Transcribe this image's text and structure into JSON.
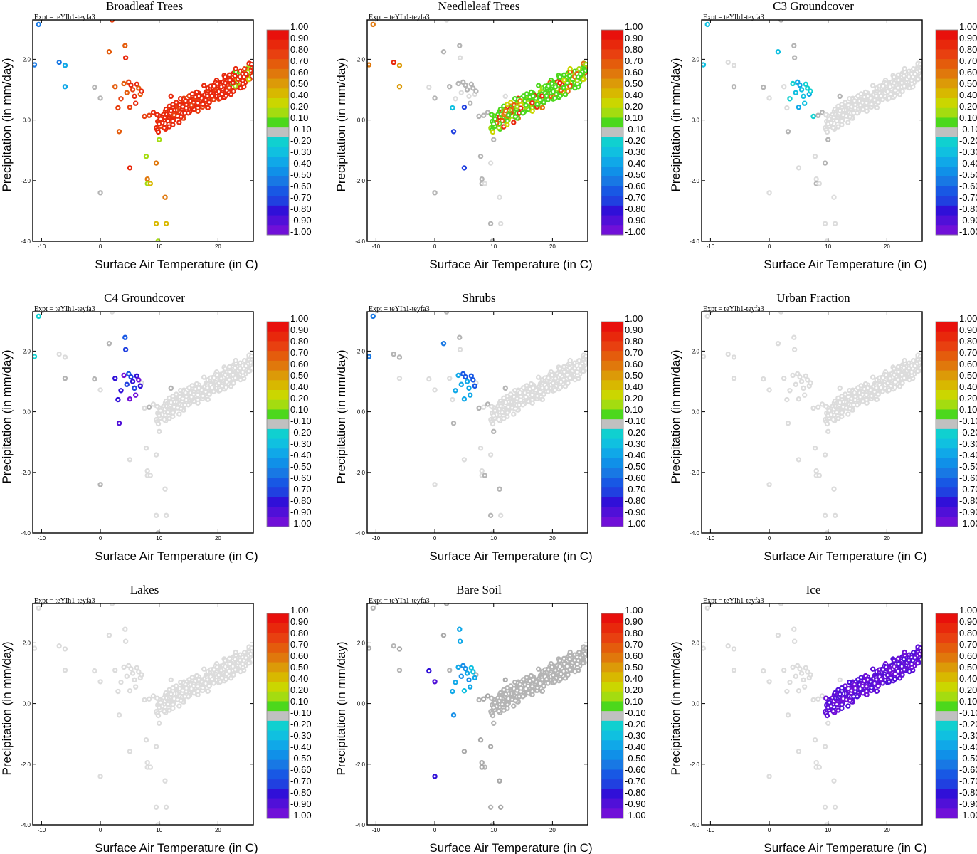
{
  "figure": {
    "experiment_label": "Expt = teYIh1-teyfa3",
    "xlabel": "Surface Air Temperature (in C)",
    "ylabel": "Precipitation (in mm/day)",
    "x_ticks": [
      -10,
      0,
      10,
      20
    ],
    "y_ticks": [
      -4.0,
      -2.0,
      0.0,
      2.0
    ],
    "xlim": [
      -11.5,
      26
    ],
    "ylim": [
      -4.0,
      3.3
    ]
  },
  "colorbar": {
    "labels": [
      "1.00",
      "0.90",
      "0.80",
      "0.70",
      "0.60",
      "0.50",
      "0.40",
      "0.20",
      "0.10",
      "-0.10",
      "-0.20",
      "-0.30",
      "-0.40",
      "-0.50",
      "-0.60",
      "-0.70",
      "-0.80",
      "-0.90",
      "-1.00"
    ],
    "colors": [
      "#e8100c",
      "#e8280c",
      "#e84010",
      "#e45c0c",
      "#e0780c",
      "#dc9a08",
      "#d8b800",
      "#cbd600",
      "#a4dc10",
      "#4cd81c",
      "#c0c0c0",
      "#10d0d0",
      "#10c0e0",
      "#10a8e8",
      "#1090e8",
      "#1878e4",
      "#1858e4",
      "#2040e0",
      "#3010d8",
      "#5010d8",
      "#7010d8"
    ]
  },
  "chart_data": [
    {
      "type": "scatter",
      "title": "Broadleaf Trees",
      "xlabel": "Surface Air Temperature (in C)",
      "ylabel": "Precipitation (in mm/day)",
      "xlim": [
        -11.5,
        26
      ],
      "ylim": [
        -4.0,
        3.3
      ],
      "scheme": "broadleaf"
    },
    {
      "type": "scatter",
      "title": "Needleleaf Trees",
      "xlabel": "Surface Air Temperature (in C)",
      "ylabel": "Precipitation (in mm/day)",
      "xlim": [
        -11.5,
        26
      ],
      "ylim": [
        -4.0,
        3.3
      ],
      "scheme": "needleleaf"
    },
    {
      "type": "scatter",
      "title": "C3 Groundcover",
      "xlabel": "Surface Air Temperature (in C)",
      "ylabel": "Precipitation (in mm/day)",
      "xlim": [
        -11.5,
        26
      ],
      "ylim": [
        -4.0,
        3.3
      ],
      "scheme": "c3"
    },
    {
      "type": "scatter",
      "title": "C4 Groundcover",
      "xlabel": "Surface Air Temperature (in C)",
      "ylabel": "Precipitation (in mm/day)",
      "xlim": [
        -11.5,
        26
      ],
      "ylim": [
        -4.0,
        3.3
      ],
      "scheme": "c4"
    },
    {
      "type": "scatter",
      "title": "Shrubs",
      "xlabel": "Surface Air Temperature (in C)",
      "ylabel": "Precipitation (in mm/day)",
      "xlim": [
        -11.5,
        26
      ],
      "ylim": [
        -4.0,
        3.3
      ],
      "scheme": "shrubs"
    },
    {
      "type": "scatter",
      "title": "Urban Fraction",
      "xlabel": "Surface Air Temperature (in C)",
      "ylabel": "Precipitation (in mm/day)",
      "xlim": [
        -11.5,
        26
      ],
      "ylim": [
        -4.0,
        3.3
      ],
      "scheme": "urban"
    },
    {
      "type": "scatter",
      "title": "Lakes",
      "xlabel": "Surface Air Temperature (in C)",
      "ylabel": "Precipitation (in mm/day)",
      "xlim": [
        -11.5,
        26
      ],
      "ylim": [
        -4.0,
        3.3
      ],
      "scheme": "lakes"
    },
    {
      "type": "scatter",
      "title": "Bare Soil",
      "xlabel": "Surface Air Temperature (in C)",
      "ylabel": "Precipitation (in mm/day)",
      "xlim": [
        -11.5,
        26
      ],
      "ylim": [
        -4.0,
        3.3
      ],
      "scheme": "baresoil"
    },
    {
      "type": "scatter",
      "title": "Ice",
      "xlabel": "Surface Air Temperature (in C)",
      "ylabel": "Precipitation (in mm/day)",
      "xlim": [
        -11.5,
        26
      ],
      "ylim": [
        -4.0,
        3.3
      ],
      "scheme": "ice"
    }
  ],
  "sparse_points": [
    [
      -11.2,
      1.82
    ],
    [
      -10.5,
      3.15
    ],
    [
      -7,
      1.9
    ],
    [
      -6,
      1.8
    ],
    [
      -6,
      1.1
    ],
    [
      -1,
      1.08
    ],
    [
      0,
      0.72
    ],
    [
      0,
      -2.4
    ],
    [
      1.5,
      2.25
    ],
    [
      2,
      3.3
    ],
    [
      2.5,
      1.1
    ],
    [
      3,
      0.4
    ],
    [
      3.2,
      -0.38
    ],
    [
      3.5,
      0.7
    ],
    [
      4,
      1.2
    ],
    [
      4.2,
      2.45
    ],
    [
      4.3,
      2.05
    ],
    [
      4.5,
      0.9
    ],
    [
      4.8,
      1.25
    ],
    [
      5,
      0.42
    ],
    [
      5,
      -1.58
    ],
    [
      5.2,
      1.15
    ],
    [
      5.5,
      1.0
    ],
    [
      5.8,
      0.78
    ],
    [
      6,
      0.55
    ],
    [
      6.2,
      1.18
    ],
    [
      6.5,
      1.05
    ],
    [
      6.8,
      0.85
    ],
    [
      7,
      0.95
    ],
    [
      7.5,
      0.12
    ],
    [
      7.8,
      -1.2
    ],
    [
      8,
      -1.95
    ],
    [
      8,
      -2.1
    ],
    [
      8.3,
      0.15
    ],
    [
      8.5,
      -2.1
    ],
    [
      9,
      0.25
    ],
    [
      9.5,
      -1.42
    ],
    [
      9.5,
      -3.42
    ],
    [
      9.8,
      -4.0
    ],
    [
      10,
      -0.65
    ],
    [
      10.5,
      -0.2
    ],
    [
      11,
      -2.55
    ],
    [
      11.2,
      -3.42
    ],
    [
      11.5,
      0.1
    ],
    [
      12,
      0.78
    ]
  ]
}
